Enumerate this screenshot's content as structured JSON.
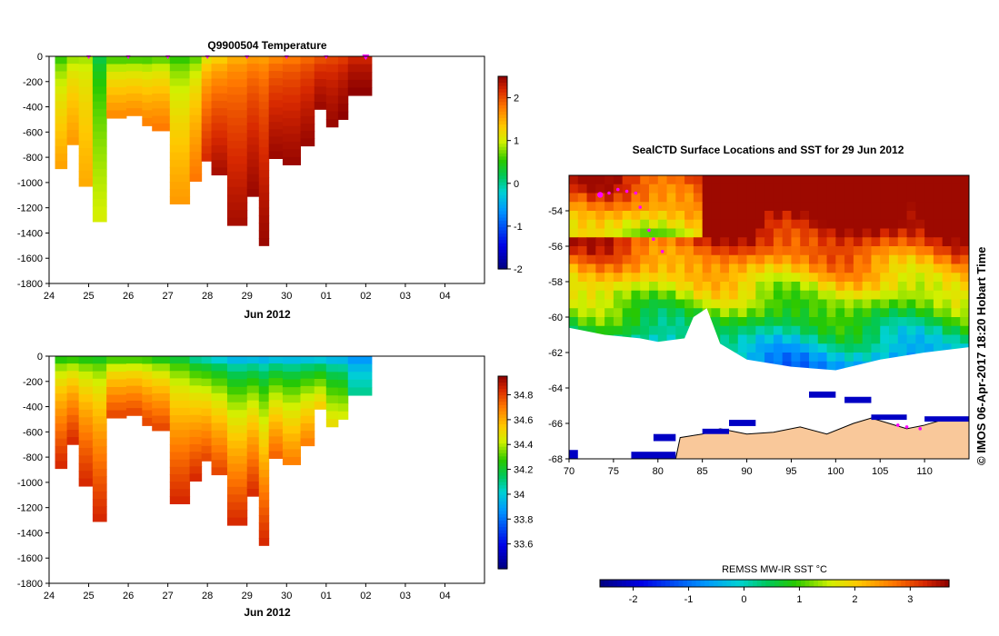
{
  "chart_data": [
    {
      "id": "temp",
      "type": "heatmap",
      "title": "Q9900504  Temperature",
      "xlabel": "Jun 2012",
      "xlim": [
        24,
        35
      ],
      "ylim": [
        -1800,
        0
      ],
      "xticks": [
        "24",
        "25",
        "26",
        "27",
        "28",
        "29",
        "30",
        "01",
        "02",
        "03",
        "04"
      ],
      "yticks": [
        0,
        -200,
        -400,
        -600,
        -800,
        -1000,
        -1200,
        -1400,
        -1600,
        -1800
      ],
      "colorbar": {
        "min": -2,
        "max": 2.5,
        "ticks": [
          -2,
          -1,
          0,
          1,
          2
        ]
      },
      "profile_markers_x": [
        25.0,
        26.0,
        27.0,
        28.0,
        29.0,
        30.0,
        31.0,
        32.0
      ],
      "profiles": [
        {
          "x0": 24.15,
          "x1": 24.45,
          "depth": 890,
          "surface": 0.3,
          "deep": 1.55
        },
        {
          "x0": 24.45,
          "x1": 24.75,
          "depth": 700,
          "surface": 0.6,
          "deep": 1.6
        },
        {
          "x0": 24.75,
          "x1": 25.1,
          "depth": 1030,
          "surface": 0.7,
          "deep": 1.5
        },
        {
          "x0": 25.1,
          "x1": 25.45,
          "depth": 1310,
          "surface": 0.1,
          "deep": 1.0
        },
        {
          "x0": 25.45,
          "x1": 25.95,
          "depth": 490,
          "surface": 0.2,
          "deep": 1.7
        },
        {
          "x0": 25.95,
          "x1": 26.35,
          "depth": 470,
          "surface": 0.2,
          "deep": 1.7
        },
        {
          "x0": 26.35,
          "x1": 26.6,
          "depth": 550,
          "surface": 0.2,
          "deep": 1.75
        },
        {
          "x0": 26.6,
          "x1": 27.05,
          "depth": 590,
          "surface": 0.3,
          "deep": 1.8
        },
        {
          "x0": 27.05,
          "x1": 27.55,
          "depth": 1170,
          "surface": 0.3,
          "deep": 1.6
        },
        {
          "x0": 27.55,
          "x1": 27.85,
          "depth": 990,
          "surface": 0.4,
          "deep": 1.8
        },
        {
          "x0": 27.85,
          "x1": 28.1,
          "depth": 830,
          "surface": 0.8,
          "deep": 2.2
        },
        {
          "x0": 28.1,
          "x1": 28.5,
          "depth": 940,
          "surface": 1.0,
          "deep": 2.4
        },
        {
          "x0": 28.5,
          "x1": 29.0,
          "depth": 1340,
          "surface": 1.3,
          "deep": 2.4
        },
        {
          "x0": 29.0,
          "x1": 29.3,
          "depth": 1110,
          "surface": 1.4,
          "deep": 2.45
        },
        {
          "x0": 29.3,
          "x1": 29.55,
          "depth": 1500,
          "surface": 1.4,
          "deep": 2.45
        },
        {
          "x0": 29.55,
          "x1": 29.9,
          "depth": 810,
          "surface": 1.5,
          "deep": 2.45
        },
        {
          "x0": 29.9,
          "x1": 30.35,
          "depth": 860,
          "surface": 1.6,
          "deep": 2.45
        },
        {
          "x0": 30.35,
          "x1": 30.7,
          "depth": 710,
          "surface": 1.7,
          "deep": 2.45
        },
        {
          "x0": 30.7,
          "x1": 31.0,
          "depth": 420,
          "surface": 1.8,
          "deep": 2.45
        },
        {
          "x0": 31.0,
          "x1": 31.3,
          "depth": 560,
          "surface": 1.9,
          "deep": 2.45
        },
        {
          "x0": 31.3,
          "x1": 31.55,
          "depth": 500,
          "surface": 1.95,
          "deep": 2.5
        },
        {
          "x0": 31.55,
          "x1": 32.15,
          "depth": 310,
          "surface": 2.1,
          "deep": 2.5
        }
      ]
    },
    {
      "id": "salt",
      "type": "heatmap",
      "title": "",
      "xlabel": "Jun 2012",
      "xlim": [
        24,
        35
      ],
      "ylim": [
        -1800,
        0
      ],
      "xticks": [
        "24",
        "25",
        "26",
        "27",
        "28",
        "29",
        "30",
        "01",
        "02",
        "03",
        "04"
      ],
      "yticks": [
        0,
        -200,
        -400,
        -600,
        -800,
        -1000,
        -1200,
        -1400,
        -1600,
        -1800
      ],
      "colorbar": {
        "min": 33.4,
        "max": 34.95,
        "ticks": [
          33.6,
          33.8,
          34,
          34.2,
          34.4,
          34.6,
          34.8
        ],
        "tick_labels": [
          "33.6",
          "33.8",
          "34",
          "34.2",
          "34.4",
          "34.6",
          "34.8"
        ]
      },
      "profiles": [
        {
          "x0": 24.15,
          "x1": 24.45,
          "depth": 890,
          "surface": 34.1,
          "deep": 34.85
        },
        {
          "x0": 24.45,
          "x1": 24.75,
          "depth": 700,
          "surface": 34.1,
          "deep": 34.85
        },
        {
          "x0": 24.75,
          "x1": 25.1,
          "depth": 1030,
          "surface": 34.1,
          "deep": 34.85
        },
        {
          "x0": 25.1,
          "x1": 25.45,
          "depth": 1310,
          "surface": 34.1,
          "deep": 34.85
        },
        {
          "x0": 25.45,
          "x1": 25.95,
          "depth": 490,
          "surface": 34.1,
          "deep": 34.8
        },
        {
          "x0": 25.95,
          "x1": 26.35,
          "depth": 470,
          "surface": 34.1,
          "deep": 34.8
        },
        {
          "x0": 26.35,
          "x1": 26.6,
          "depth": 550,
          "surface": 34.1,
          "deep": 34.8
        },
        {
          "x0": 26.6,
          "x1": 27.05,
          "depth": 590,
          "surface": 34.05,
          "deep": 34.8
        },
        {
          "x0": 27.05,
          "x1": 27.55,
          "depth": 1170,
          "surface": 34.05,
          "deep": 34.85
        },
        {
          "x0": 27.55,
          "x1": 27.85,
          "depth": 990,
          "surface": 33.9,
          "deep": 34.85
        },
        {
          "x0": 27.85,
          "x1": 28.1,
          "depth": 830,
          "surface": 33.85,
          "deep": 34.8
        },
        {
          "x0": 28.1,
          "x1": 28.5,
          "depth": 940,
          "surface": 33.8,
          "deep": 34.8
        },
        {
          "x0": 28.5,
          "x1": 29.0,
          "depth": 1340,
          "surface": 33.75,
          "deep": 34.85
        },
        {
          "x0": 29.0,
          "x1": 29.3,
          "depth": 1110,
          "surface": 33.75,
          "deep": 34.85
        },
        {
          "x0": 29.3,
          "x1": 29.55,
          "depth": 1500,
          "surface": 33.75,
          "deep": 34.85
        },
        {
          "x0": 29.55,
          "x1": 29.9,
          "depth": 810,
          "surface": 33.75,
          "deep": 34.75
        },
        {
          "x0": 29.9,
          "x1": 30.35,
          "depth": 860,
          "surface": 33.75,
          "deep": 34.7
        },
        {
          "x0": 30.35,
          "x1": 30.7,
          "depth": 710,
          "surface": 33.75,
          "deep": 34.7
        },
        {
          "x0": 30.7,
          "x1": 31.0,
          "depth": 420,
          "surface": 33.75,
          "deep": 34.55
        },
        {
          "x0": 31.0,
          "x1": 31.3,
          "depth": 560,
          "surface": 33.75,
          "deep": 34.5
        },
        {
          "x0": 31.3,
          "x1": 31.55,
          "depth": 500,
          "surface": 33.75,
          "deep": 34.45
        },
        {
          "x0": 31.55,
          "x1": 32.15,
          "depth": 310,
          "surface": 33.75,
          "deep": 34.1
        }
      ]
    },
    {
      "id": "map",
      "type": "heatmap",
      "title": "SealCTD Surface Locations and SST for 29 Jun 2012",
      "xlim": [
        70,
        115
      ],
      "ylim": [
        -68,
        -52
      ],
      "xticks": [
        70,
        75,
        80,
        85,
        90,
        95,
        100,
        105,
        110
      ],
      "yticks": [
        -54,
        -56,
        -58,
        -60,
        -62,
        -64,
        -66,
        -68
      ],
      "colorbar": {
        "min": -2.6,
        "max": 3.7,
        "ticks": [
          -2,
          -1,
          0,
          1,
          2,
          3
        ],
        "label": "REMSS MW-IR SST °C"
      },
      "land_color": "#f9c89a",
      "track_color": "#ff00ff",
      "track_points": [
        [
          73.5,
          -53.1
        ],
        [
          74.5,
          -53.0
        ],
        [
          75.5,
          -52.8
        ],
        [
          76.5,
          -52.9
        ],
        [
          77.5,
          -53.0
        ],
        [
          78,
          -53.8
        ],
        [
          79,
          -55.1
        ],
        [
          79.5,
          -55.6
        ],
        [
          80.5,
          -56.3
        ],
        [
          107,
          -66.1
        ],
        [
          108,
          -66.2
        ],
        [
          109.5,
          -66.3
        ]
      ]
    }
  ],
  "footer": {
    "copyright": "© IMOS 06-Apr-2017 18:20 Hobart Time"
  }
}
